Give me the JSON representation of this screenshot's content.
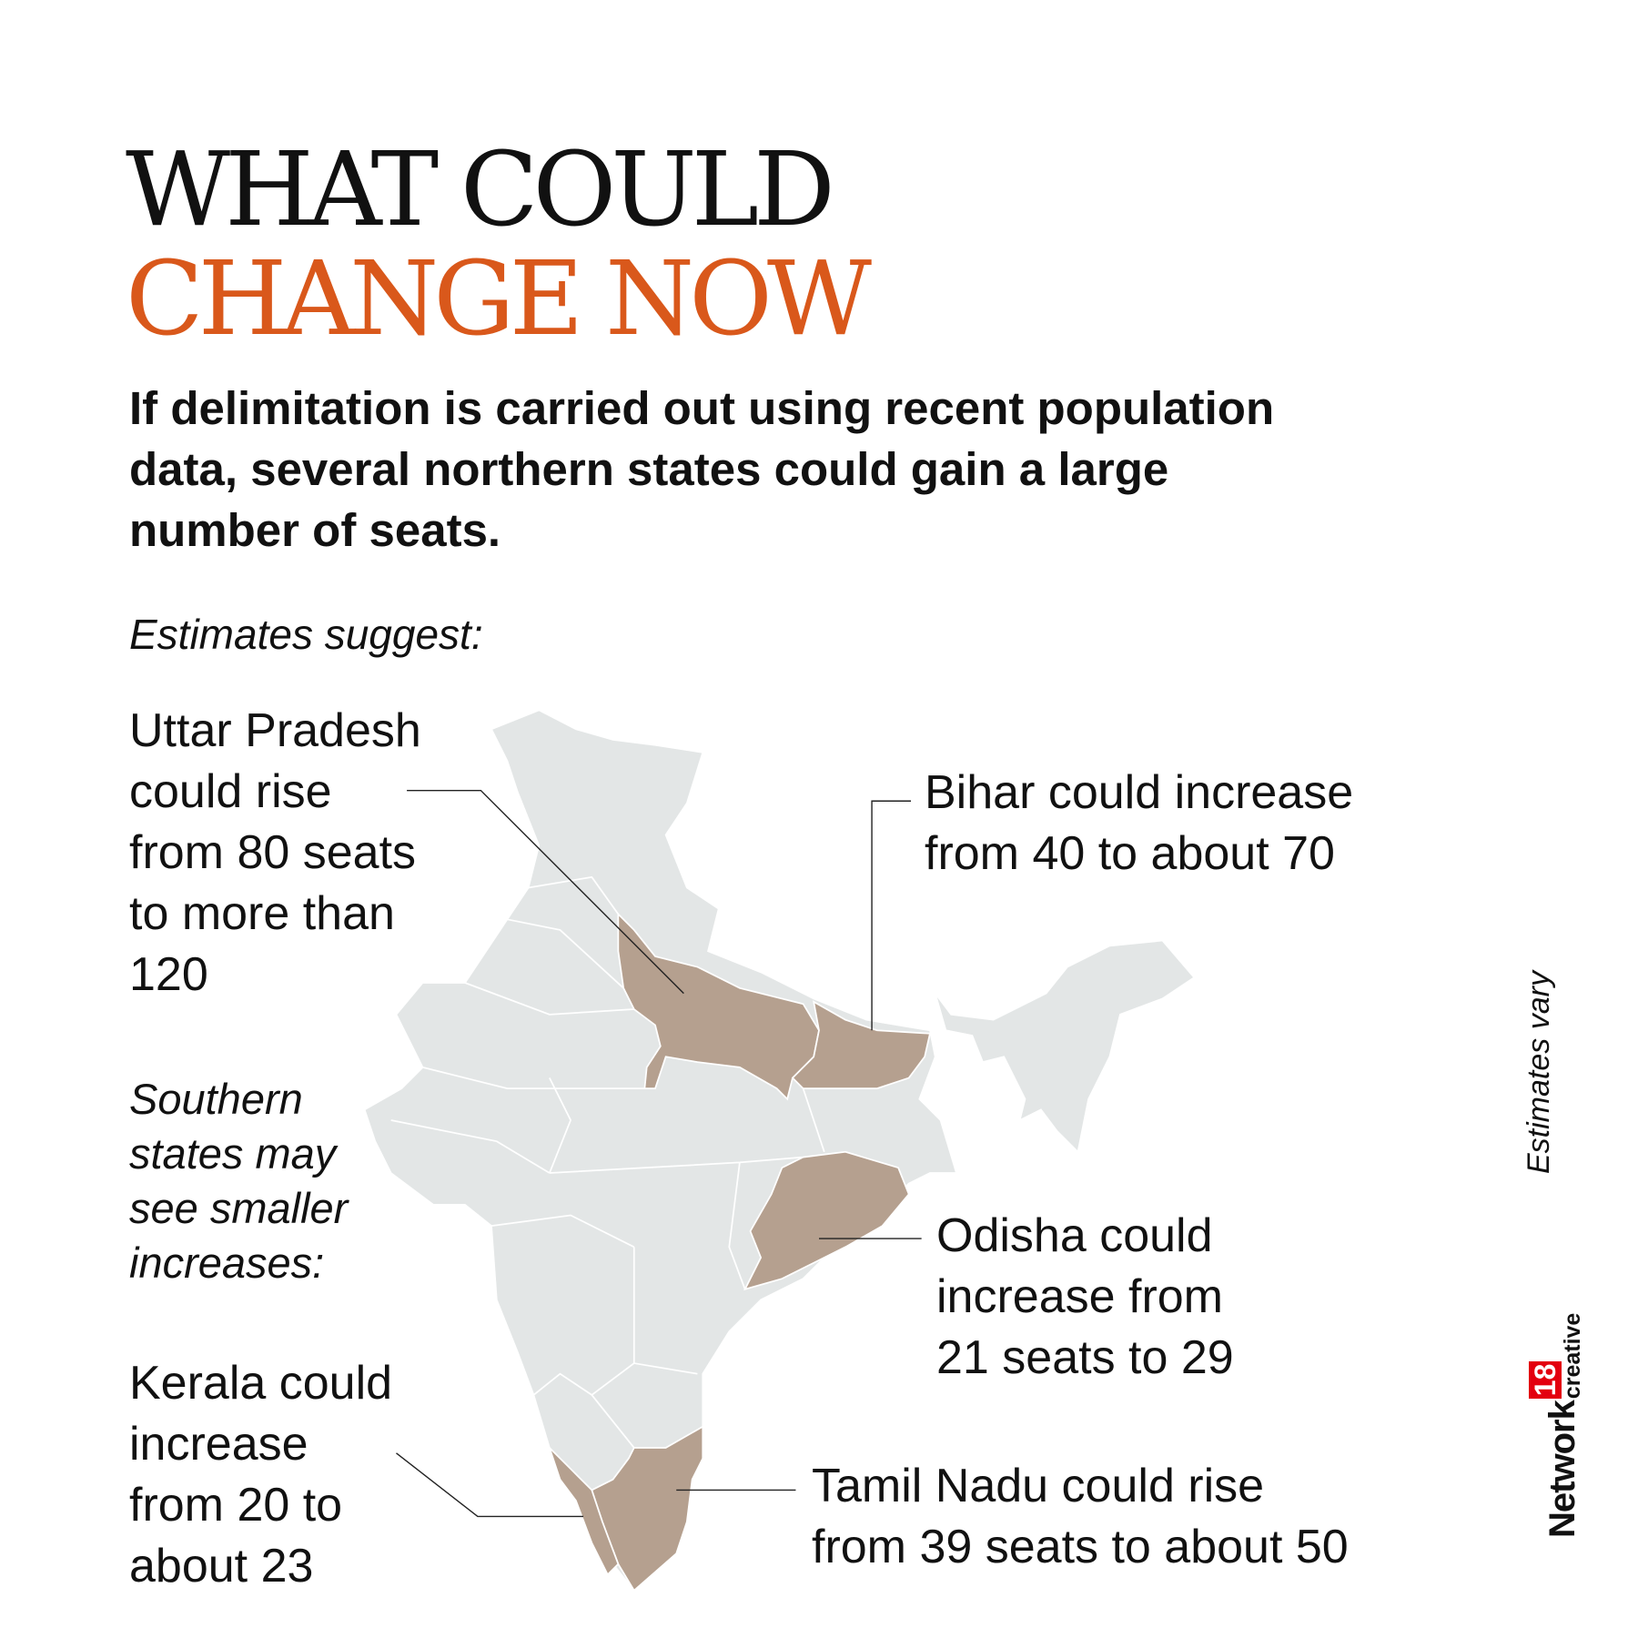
{
  "title": {
    "line1": "WHAT COULD",
    "line2": "CHANGE NOW"
  },
  "subtitle": "If delimitation is carried out using recent population data, several northern states could gain a large number of seats.",
  "intro": "Estimates suggest:",
  "callouts": {
    "uttar_pradesh": "Uttar Pradesh\ncould rise\nfrom 80 seats\nto more than\n120",
    "bihar": "Bihar could increase\nfrom 40 to about 70",
    "southern_note": "Southern\nstates may\nsee smaller\nincreases:",
    "odisha": "Odisha could\nincrease from\n21 seats to 29",
    "kerala": "Kerala could\nincrease\nfrom 20 to\nabout 23",
    "tamil_nadu": "Tamil Nadu could rise\nfrom 39 seats to about 50"
  },
  "side_note": "Estimates vary",
  "brand": {
    "name": "Network",
    "number": "18",
    "tag": "creative"
  },
  "colors": {
    "accent": "#d9581b",
    "map_base": "#e3e6e6",
    "highlight": "#b5a08f",
    "logo_red": "#e3000f"
  }
}
